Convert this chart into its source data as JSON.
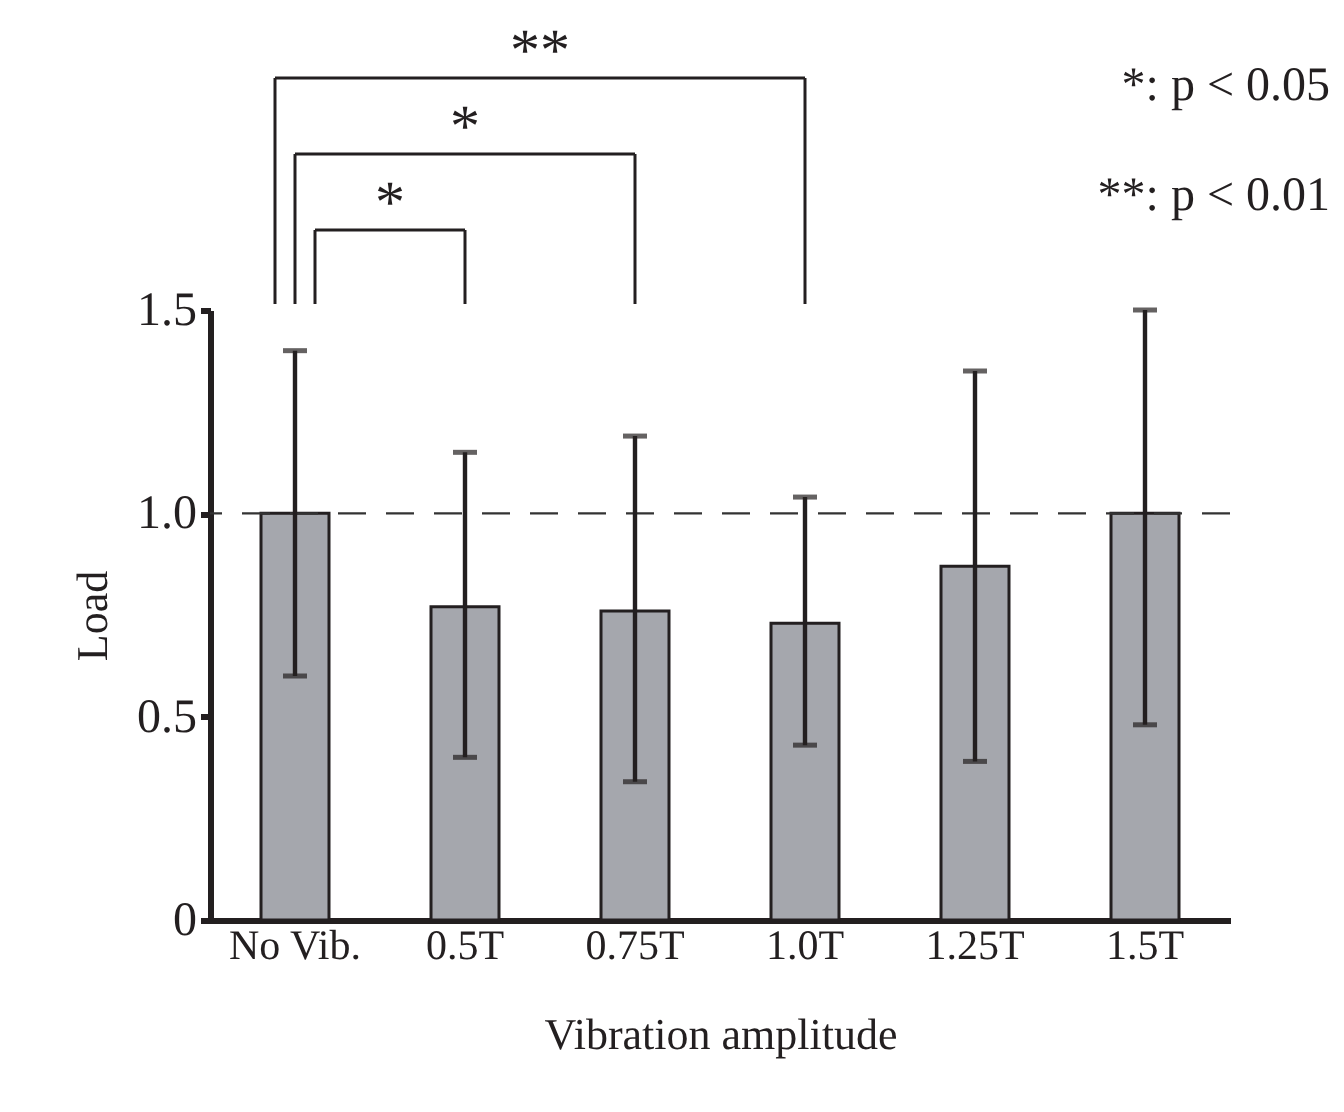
{
  "chart_data": {
    "type": "bar",
    "categories": [
      "No Vib.",
      "0.5T",
      "0.75T",
      "1.0T",
      "1.25T",
      "1.5T"
    ],
    "values": [
      1.0,
      0.77,
      0.76,
      0.73,
      0.87,
      1.0
    ],
    "errors": [
      [
        0.6,
        1.4
      ],
      [
        0.4,
        1.15
      ],
      [
        0.34,
        1.19
      ],
      [
        0.43,
        1.04
      ],
      [
        0.39,
        1.35
      ],
      [
        0.48,
        1.5
      ]
    ],
    "color": "#a5a7ad",
    "xlabel": "Vibration amplitude",
    "ylabel": "Load",
    "ylim": [
      0,
      1.5
    ],
    "yticks": [
      0,
      {
        "value": 0.5,
        "label": "0.5"
      },
      {
        "value": 1.0,
        "label": "1.0"
      },
      {
        "value": 1.5,
        "label": "1.5"
      }
    ],
    "ref_lines": [
      {
        "axis": "y",
        "value": 1.0,
        "label": null,
        "line_style": "dashed",
        "color": "#333333"
      }
    ],
    "annotations": [
      "*",
      "*",
      "**",
      "*: p < 0.05",
      "**: p < 0.01"
    ],
    "grid": false
  }
}
